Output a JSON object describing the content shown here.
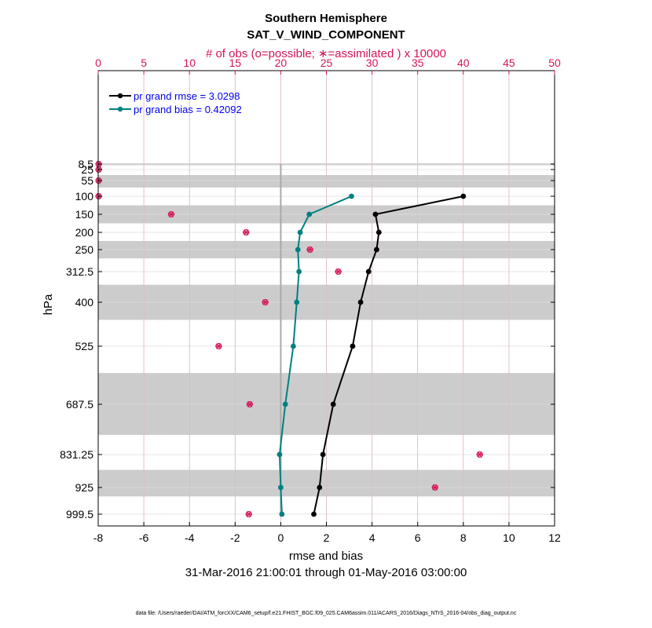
{
  "chart_data": {
    "type": "line",
    "title": "Southern Hemisphere",
    "subtitle": "SAT_V_WIND_COMPONENT",
    "top_axis_label": "# of obs (o=possible; ∗=assimilated ) x 10000",
    "xlabel": "rmse and bias",
    "ylabel": "hPa",
    "date_range": "31-Mar-2016 21:00:01 through 01-May-2016 03:00:00",
    "footnote": "data file: /Users/raeder/DAI/ATM_forcXX/CAM6_setup/f.e21.FHIST_BGC.f09_025.CAM6assim.011/ACARS_2016/Diags_NTrS_2016-04/obs_diag_output.nc",
    "xlim": [
      -8,
      12
    ],
    "x_ticks": [
      "-8",
      "-6",
      "-4",
      "-2",
      "0",
      "2",
      "4",
      "6",
      "8",
      "10",
      "12"
    ],
    "top_xlim": [
      0,
      50
    ],
    "top_ticks": [
      "0",
      "5",
      "10",
      "15",
      "20",
      "25",
      "30",
      "35",
      "40",
      "45",
      "50"
    ],
    "y_levels": [
      8.5,
      25,
      55,
      100,
      150,
      200,
      250,
      312.5,
      400,
      525,
      687.5,
      831.25,
      925,
      999.5
    ],
    "y_tick_labels": [
      "8.5",
      "25",
      "55",
      "100",
      "150",
      "200",
      "250",
      "312.5",
      "400",
      "525",
      "687.5",
      "831.25",
      "925",
      "999.5"
    ],
    "shaded_layers": [
      [
        0,
        12
      ],
      [
        40,
        75
      ],
      [
        125,
        175
      ],
      [
        225,
        275
      ],
      [
        350,
        450
      ],
      [
        600,
        775
      ],
      [
        875,
        950
      ]
    ],
    "grid": true,
    "legend_position": "top-left",
    "series": [
      {
        "name": "pr grand rmse = 3.0298",
        "color": "#000000",
        "levels": [
          100,
          150,
          200,
          250,
          312.5,
          400,
          525,
          687.5,
          831.25,
          925,
          999.5
        ],
        "values": [
          8.0,
          4.15,
          4.3,
          4.2,
          3.85,
          3.5,
          3.15,
          2.3,
          1.85,
          1.7,
          1.45
        ]
      },
      {
        "name": "pr grand bias = 0.42092",
        "color": "#008080",
        "levels": [
          100,
          150,
          200,
          250,
          312.5,
          400,
          525,
          687.5,
          831.25,
          925,
          999.5
        ],
        "values": [
          3.1,
          1.25,
          0.85,
          0.75,
          0.8,
          0.7,
          0.55,
          0.2,
          -0.05,
          0.0,
          0.05
        ]
      }
    ],
    "obs_counts": {
      "levels": [
        8.5,
        25,
        55,
        100,
        150,
        200,
        250,
        312.5,
        400,
        525,
        687.5,
        831.25,
        925,
        999.5
      ],
      "values": [
        0.05,
        0.05,
        0.05,
        0.05,
        8.0,
        16.2,
        23.2,
        26.3,
        18.3,
        13.2,
        16.6,
        41.8,
        36.9,
        16.5
      ]
    }
  },
  "colors": {
    "rmse": "#000000",
    "bias": "#008080",
    "obs": "#d4145a",
    "legend_text": "#0000ee",
    "shade": "#cccccc",
    "zero_line": "#aaaaaa"
  }
}
